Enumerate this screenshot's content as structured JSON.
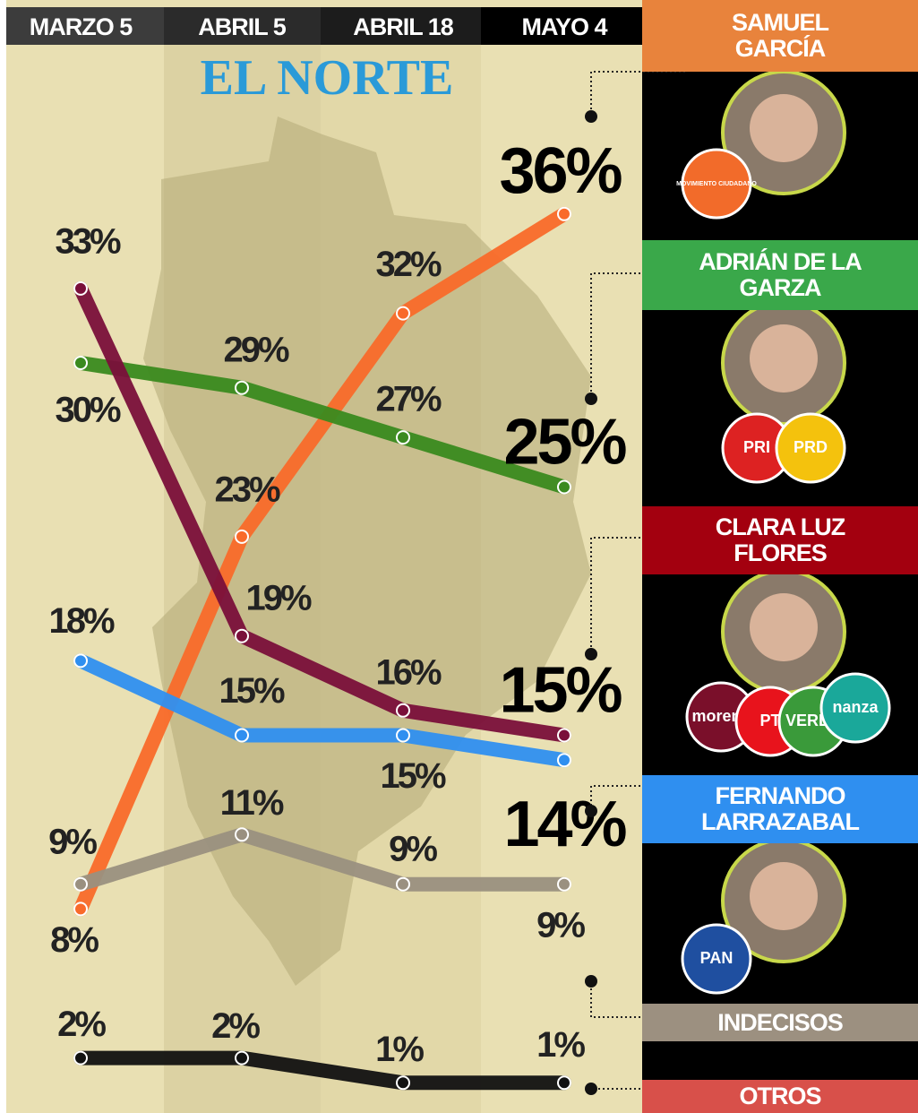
{
  "logo": "EL NORTE",
  "chart_data": {
    "type": "line",
    "categories": [
      "MARZO 5",
      "ABRIL 5",
      "ABRIL 18",
      "MAYO 4"
    ],
    "ylim": [
      0,
      40
    ],
    "series": [
      {
        "name": "SAMUEL GARCÍA",
        "color": "#f96a2a",
        "values": [
          8,
          23,
          32,
          36
        ],
        "value_labels": [
          "8%",
          "23%",
          "32%",
          "36%"
        ],
        "parties": [
          "MOVIMIENTO CIUDADANO"
        ]
      },
      {
        "name": "ADRIÁN DE LA GARZA",
        "color": "#3a8a1f",
        "values": [
          30,
          29,
          27,
          25
        ],
        "value_labels": [
          "30%",
          "29%",
          "27%",
          "25%"
        ],
        "parties": [
          "PRI",
          "PRD"
        ]
      },
      {
        "name": "CLARA LUZ FLORES",
        "color": "#7a0f3a",
        "values": [
          33,
          19,
          16,
          15
        ],
        "value_labels": [
          "33%",
          "19%",
          "16%",
          "15%"
        ],
        "parties": [
          "morena",
          "PT",
          "VERDE",
          "nanza"
        ]
      },
      {
        "name": "FERNANDO LARRAZABAL",
        "color": "#2f8ff0",
        "values": [
          18,
          15,
          15,
          14
        ],
        "value_labels": [
          "18%",
          "15%",
          "15%",
          "14%"
        ],
        "parties": [
          "PAN"
        ]
      },
      {
        "name": "INDECISOS",
        "color": "#9a9080",
        "values": [
          9,
          11,
          9,
          9
        ],
        "value_labels": [
          "9%",
          "11%",
          "9%",
          "9%"
        ]
      },
      {
        "name": "OTROS",
        "color": "#111111",
        "values": [
          2,
          2,
          1,
          1
        ],
        "value_labels": [
          "2%",
          "2%",
          "1%",
          "1%"
        ]
      }
    ]
  }
}
